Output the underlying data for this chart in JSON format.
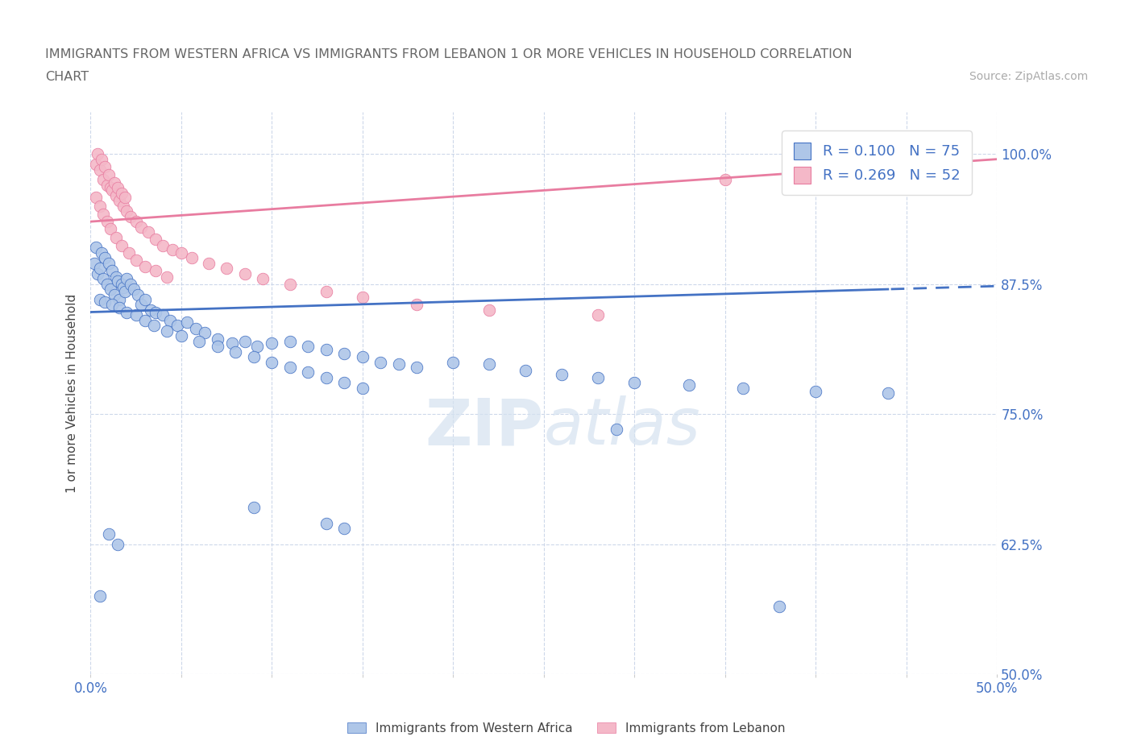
{
  "title_line1": "IMMIGRANTS FROM WESTERN AFRICA VS IMMIGRANTS FROM LEBANON 1 OR MORE VEHICLES IN HOUSEHOLD CORRELATION",
  "title_line2": "CHART",
  "source": "Source: ZipAtlas.com",
  "ylabel": "1 or more Vehicles in Household",
  "xlim": [
    0.0,
    0.5
  ],
  "ylim": [
    0.5,
    1.04
  ],
  "yticks": [
    0.5,
    0.625,
    0.75,
    0.875,
    1.0
  ],
  "ytick_labels": [
    "50.0%",
    "62.5%",
    "75.0%",
    "87.5%",
    "100.0%"
  ],
  "xticks": [
    0.0,
    0.05,
    0.1,
    0.15,
    0.2,
    0.25,
    0.3,
    0.35,
    0.4,
    0.45,
    0.5
  ],
  "xtick_labels": [
    "0.0%",
    "",
    "",
    "",
    "",
    "",
    "",
    "",
    "",
    "",
    "50.0%"
  ],
  "western_africa_x": [
    0.002,
    0.003,
    0.004,
    0.005,
    0.006,
    0.007,
    0.008,
    0.009,
    0.01,
    0.011,
    0.012,
    0.013,
    0.014,
    0.015,
    0.016,
    0.017,
    0.018,
    0.019,
    0.02,
    0.022,
    0.024,
    0.026,
    0.028,
    0.03,
    0.033,
    0.036,
    0.04,
    0.044,
    0.048,
    0.053,
    0.058,
    0.063,
    0.07,
    0.078,
    0.085,
    0.092,
    0.1,
    0.11,
    0.12,
    0.13,
    0.14,
    0.15,
    0.16,
    0.17,
    0.18,
    0.2,
    0.22,
    0.24,
    0.26,
    0.28,
    0.3,
    0.33,
    0.36,
    0.4,
    0.44,
    0.005,
    0.008,
    0.012,
    0.016,
    0.02,
    0.025,
    0.03,
    0.035,
    0.042,
    0.05,
    0.06,
    0.07,
    0.08,
    0.09,
    0.1,
    0.11,
    0.12,
    0.13,
    0.14,
    0.15
  ],
  "western_africa_y": [
    0.895,
    0.91,
    0.885,
    0.89,
    0.905,
    0.88,
    0.9,
    0.875,
    0.895,
    0.87,
    0.888,
    0.865,
    0.882,
    0.878,
    0.86,
    0.875,
    0.872,
    0.868,
    0.88,
    0.875,
    0.87,
    0.865,
    0.855,
    0.86,
    0.85,
    0.848,
    0.845,
    0.84,
    0.835,
    0.838,
    0.832,
    0.828,
    0.822,
    0.818,
    0.82,
    0.815,
    0.818,
    0.82,
    0.815,
    0.812,
    0.808,
    0.805,
    0.8,
    0.798,
    0.795,
    0.8,
    0.798,
    0.792,
    0.788,
    0.785,
    0.78,
    0.778,
    0.775,
    0.772,
    0.77,
    0.86,
    0.858,
    0.855,
    0.852,
    0.848,
    0.845,
    0.84,
    0.835,
    0.83,
    0.825,
    0.82,
    0.815,
    0.81,
    0.805,
    0.8,
    0.795,
    0.79,
    0.785,
    0.78,
    0.775
  ],
  "western_africa_x_outliers": [
    0.005,
    0.01,
    0.015,
    0.09,
    0.13,
    0.14,
    0.29,
    0.38
  ],
  "western_africa_y_outliers": [
    0.575,
    0.635,
    0.625,
    0.66,
    0.645,
    0.64,
    0.735,
    0.565
  ],
  "lebanon_x": [
    0.003,
    0.004,
    0.005,
    0.006,
    0.007,
    0.008,
    0.009,
    0.01,
    0.011,
    0.012,
    0.013,
    0.014,
    0.015,
    0.016,
    0.017,
    0.018,
    0.019,
    0.02,
    0.022,
    0.025,
    0.028,
    0.032,
    0.036,
    0.04,
    0.045,
    0.05,
    0.056,
    0.065,
    0.075,
    0.085,
    0.095,
    0.11,
    0.13,
    0.15,
    0.18,
    0.22,
    0.28,
    0.35,
    0.45,
    0.48,
    0.003,
    0.005,
    0.007,
    0.009,
    0.011,
    0.014,
    0.017,
    0.021,
    0.025,
    0.03,
    0.036,
    0.042
  ],
  "lebanon_y": [
    0.99,
    1.0,
    0.985,
    0.995,
    0.975,
    0.988,
    0.97,
    0.98,
    0.968,
    0.965,
    0.972,
    0.96,
    0.968,
    0.955,
    0.962,
    0.95,
    0.958,
    0.945,
    0.94,
    0.935,
    0.93,
    0.925,
    0.918,
    0.912,
    0.908,
    0.905,
    0.9,
    0.895,
    0.89,
    0.885,
    0.88,
    0.875,
    0.868,
    0.862,
    0.855,
    0.85,
    0.845,
    0.975,
    0.988,
    0.98,
    0.958,
    0.95,
    0.942,
    0.935,
    0.928,
    0.92,
    0.912,
    0.905,
    0.898,
    0.892,
    0.888,
    0.882
  ],
  "western_africa_color": "#aec6e8",
  "lebanon_color": "#f4b8c8",
  "western_africa_line_color": "#4472c4",
  "lebanon_line_color": "#e87ca0",
  "wa_trend_intercept": 0.848,
  "wa_trend_slope": 0.05,
  "wa_trend_x_solid_end": 0.44,
  "lb_trend_intercept": 0.935,
  "lb_trend_slope": 0.12,
  "R_western": 0.1,
  "N_western": 75,
  "R_lebanon": 0.269,
  "N_lebanon": 52,
  "background_color": "#ffffff",
  "grid_color": "#c8d4e8",
  "axis_label_color": "#4472c4",
  "title_color": "#666666",
  "source_color": "#aaaaaa"
}
